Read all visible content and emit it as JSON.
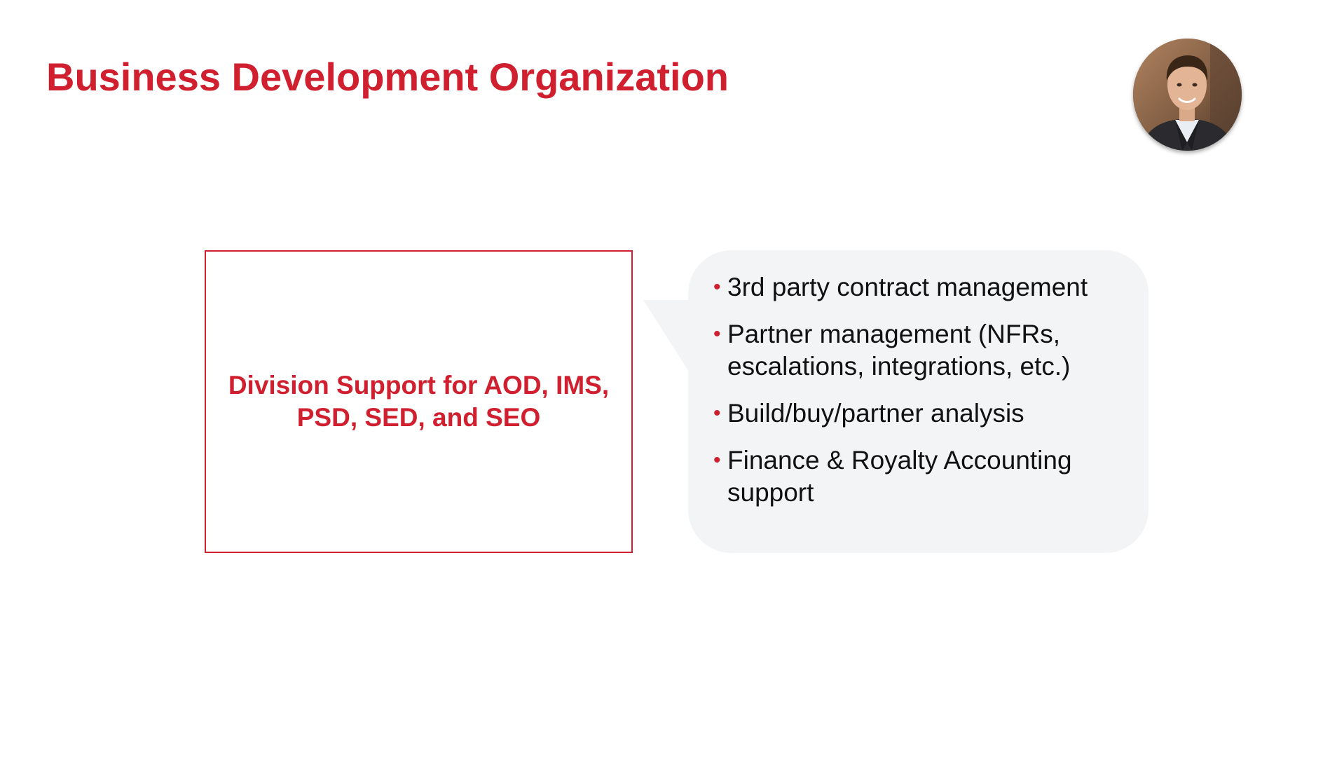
{
  "slide": {
    "title": "Business Development Organization",
    "division_box": {
      "text": "Division Support for AOD, IMS, PSD, SED, and SEO"
    },
    "callout": {
      "bullet_glyph": "•",
      "items": [
        "3rd party contract management",
        "Partner management (NFRs, escalations, integrations, etc.)",
        "Build/buy/partner analysis",
        "Finance & Royalty Accounting support"
      ]
    },
    "colors": {
      "accent": "#d0202f",
      "callout_background": "#f3f4f6",
      "body_text": "#111111"
    },
    "icons": {
      "avatar": "presenter-photo"
    }
  }
}
